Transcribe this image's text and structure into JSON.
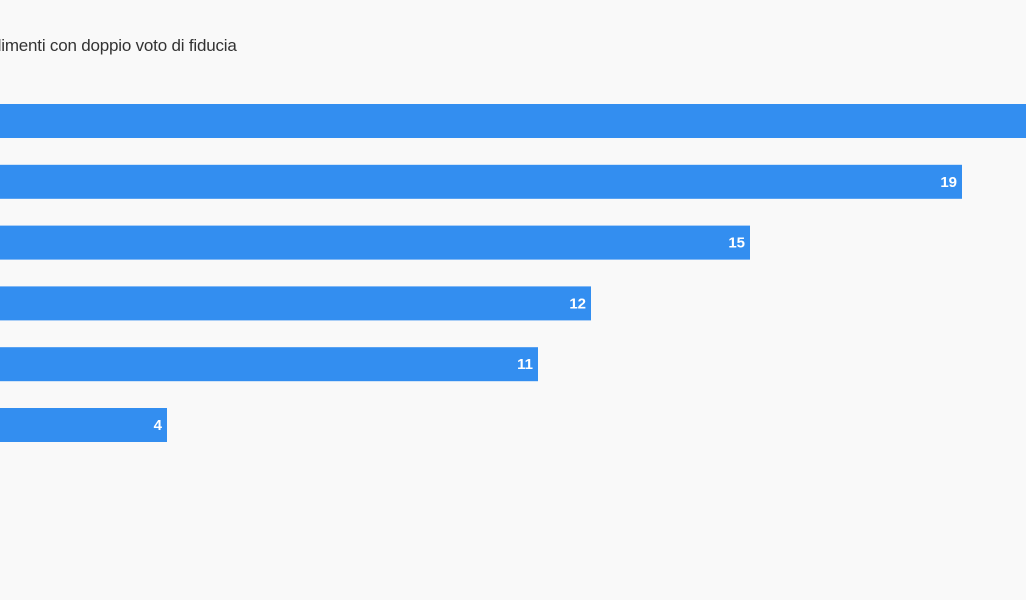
{
  "title": "dimenti con doppio voto di fiducia",
  "chart_data": {
    "type": "bar",
    "orientation": "horizontal",
    "title": "dimenti con doppio voto di fiducia",
    "values": [
      22,
      19,
      15,
      12,
      11,
      4
    ],
    "data_labels": [
      "",
      "19",
      "15",
      "12",
      "11",
      "4"
    ],
    "xlim": [
      0,
      22
    ],
    "grid": false,
    "bar_color": "#338ef0",
    "label_color": "#ffffff"
  }
}
